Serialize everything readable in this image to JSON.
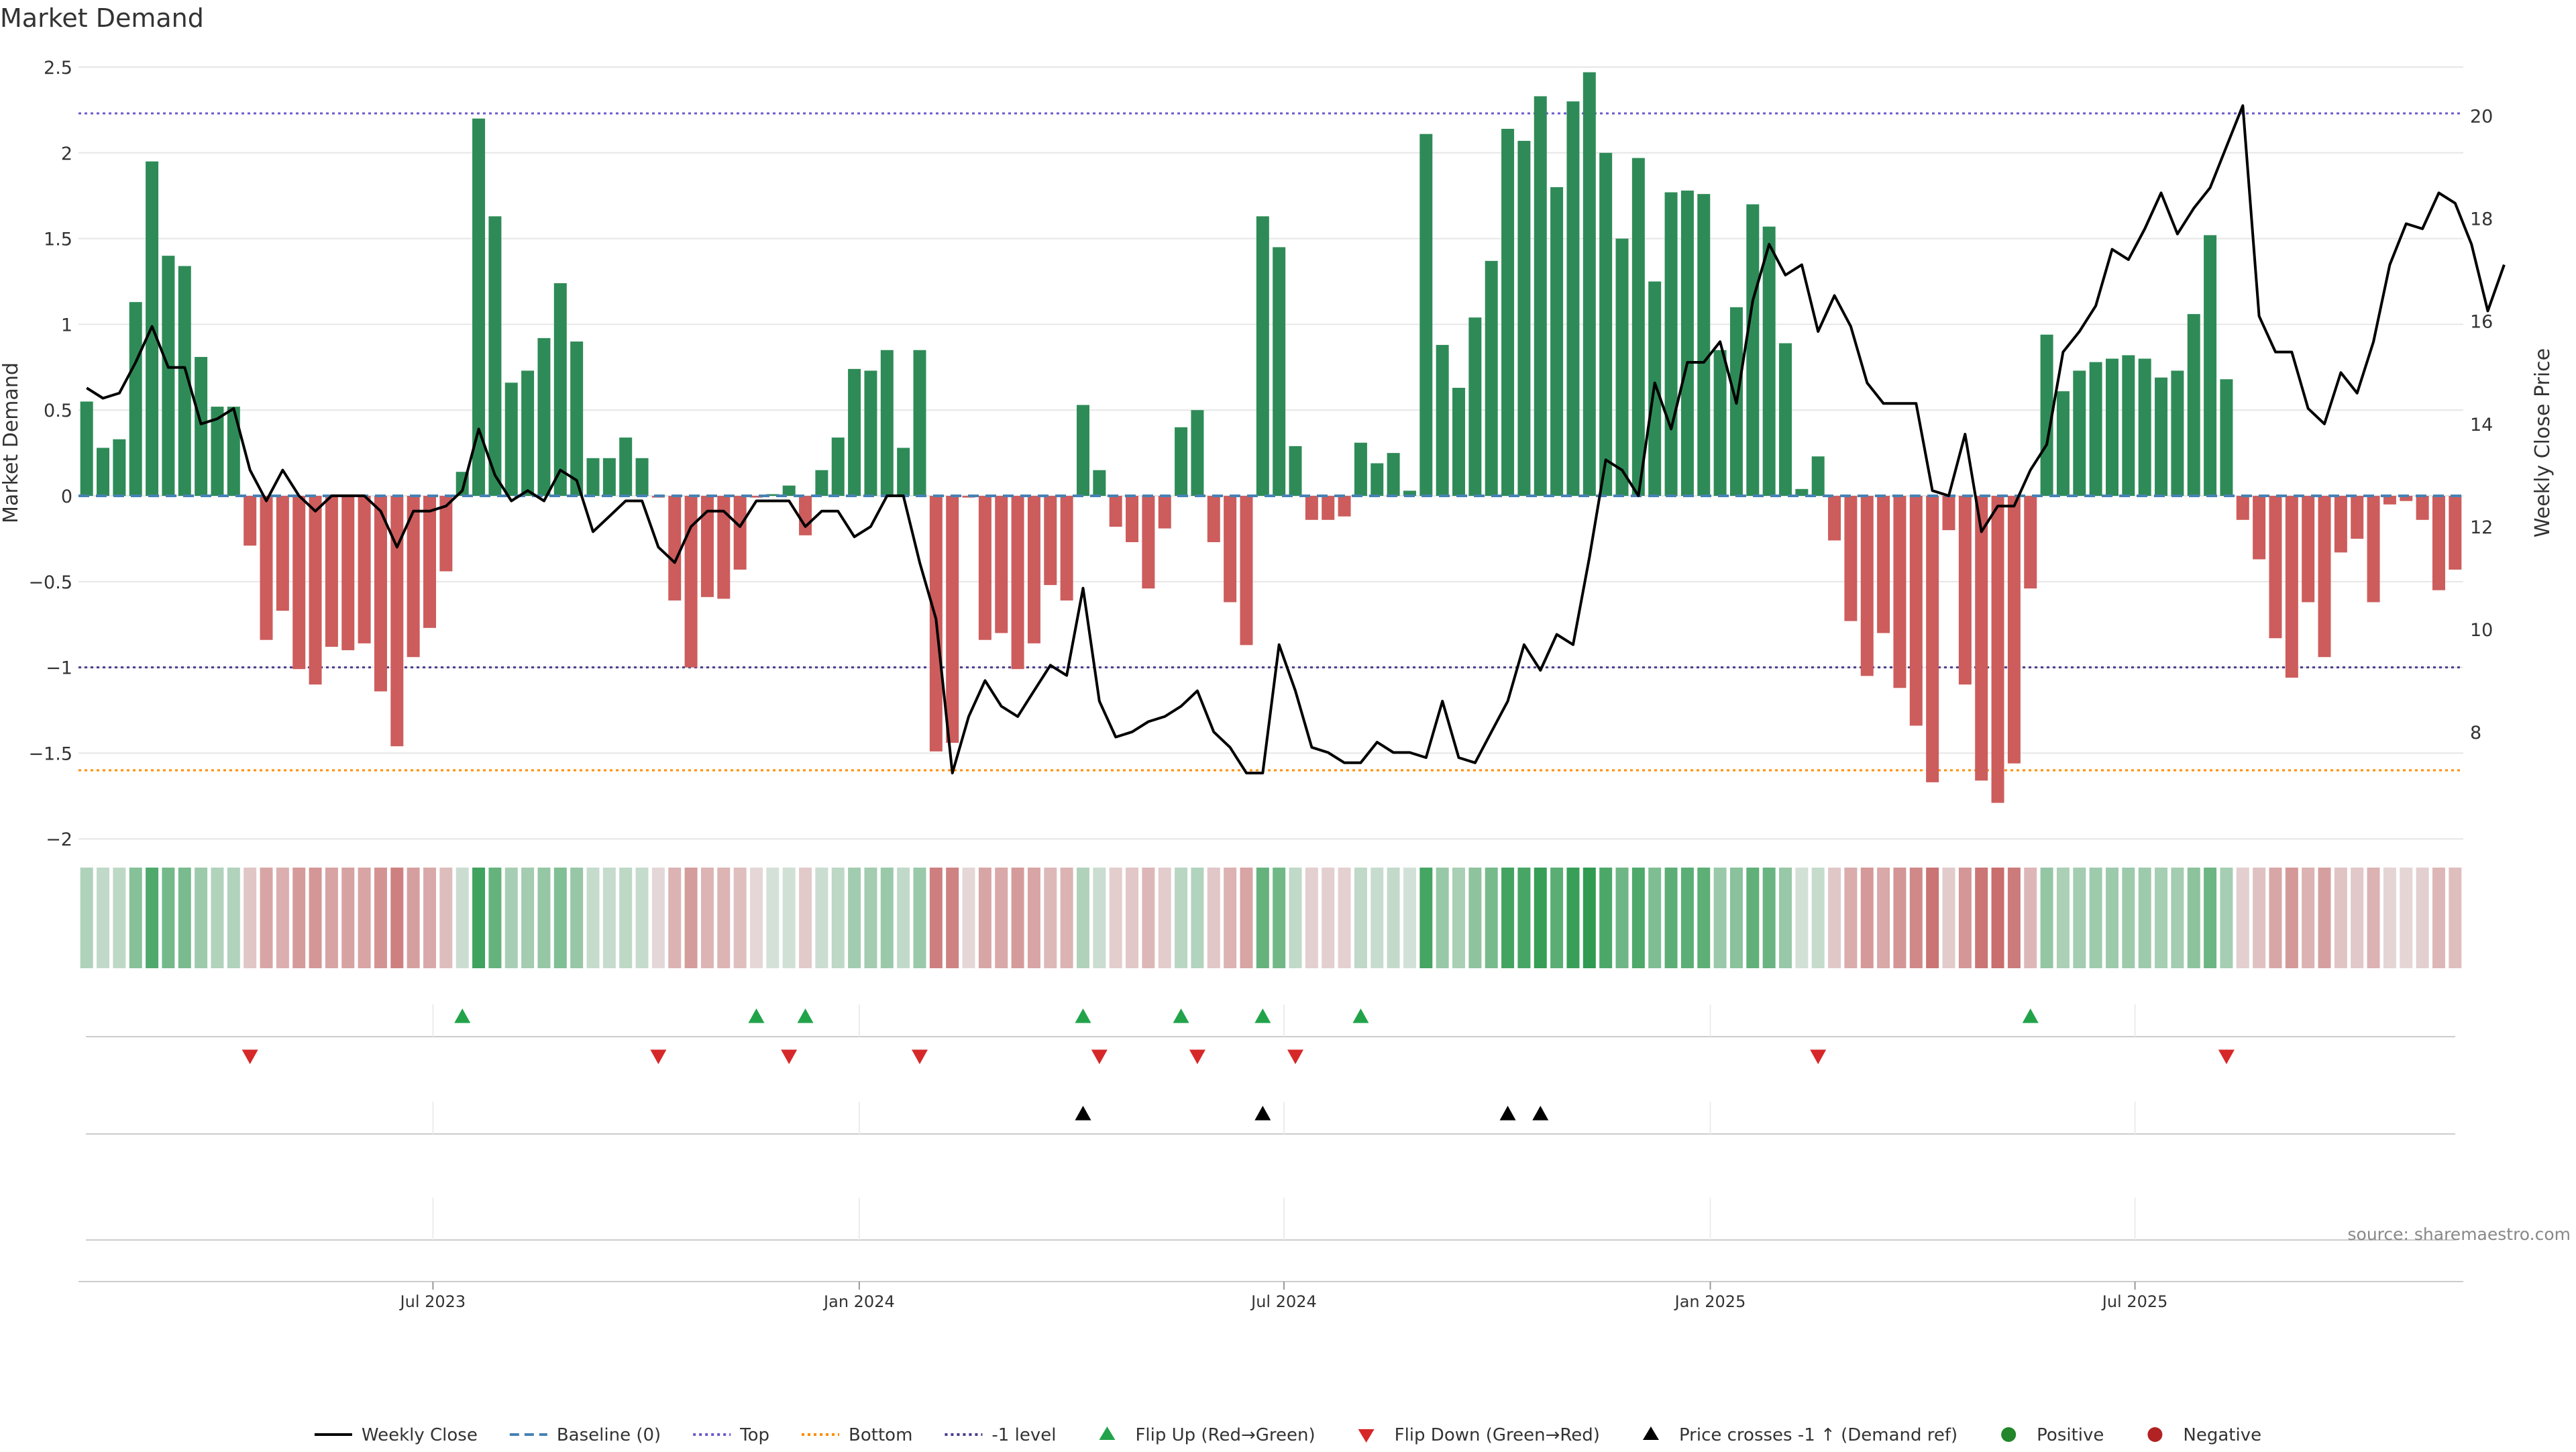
{
  "colors": {
    "positive": "#2e8b57",
    "negative": "#cd5c5c",
    "price_line": "#000000",
    "baseline": "#4682b4",
    "top": "#6a5acd",
    "bottom": "#ff8c00",
    "minus_one": "#483d8b",
    "flip_up": "#22a34a",
    "flip_down": "#d62828",
    "price_cross": "#000000",
    "grid": "#e6e6e6",
    "axis": "#cccccc",
    "source": "#888888"
  },
  "chart_data": {
    "type": "bar",
    "title": "Market Demand",
    "ylabel_left": "Market Demand",
    "ylabel_right": "Weekly Close Price",
    "ylim_left": [
      -2.05,
      2.5
    ],
    "ylim_right": [
      5.75,
      20.95
    ],
    "yticks_left": [
      2.5,
      2,
      1.5,
      1,
      0.5,
      0,
      -0.5,
      -1,
      -1.5,
      -2
    ],
    "ytick_labels_left": [
      "2.5",
      "2",
      "1.5",
      "1",
      "0.5",
      "0",
      "−0.5",
      "−1",
      "−1.5",
      "−2"
    ],
    "yticks_right": [
      20,
      18,
      16,
      14,
      12,
      10,
      8
    ],
    "ytick_labels_right": [
      "20",
      "18",
      "16",
      "14",
      "12",
      "10",
      "8"
    ],
    "xtick_positions": [
      21.2,
      47.3,
      73.3,
      99.4,
      125.4
    ],
    "xtick_labels": [
      "Jul 2023",
      "Jan 2024",
      "Jul 2024",
      "Jan 2025",
      "Jul 2025"
    ],
    "reference_lines": {
      "top": 2.23,
      "bottom": -1.6,
      "minus_one": -1.0,
      "baseline": 0
    },
    "demand": [
      0.55,
      0.28,
      0.33,
      1.13,
      1.95,
      1.4,
      1.34,
      0.81,
      0.52,
      0.52,
      -0.29,
      -0.84,
      -0.67,
      -1.01,
      -1.1,
      -0.88,
      -0.9,
      -0.86,
      -1.14,
      -1.46,
      -0.94,
      -0.77,
      -0.44,
      0.14,
      2.2,
      1.63,
      0.66,
      0.73,
      0.92,
      1.24,
      0.9,
      0.22,
      0.22,
      0.34,
      0.22,
      -0.01,
      -0.61,
      -1.0,
      -0.59,
      -0.6,
      -0.43,
      -0.01,
      0.01,
      0.06,
      -0.23,
      0.15,
      0.34,
      0.74,
      0.73,
      0.85,
      0.28,
      0.85,
      -1.49,
      -1.44,
      -0.01,
      -0.84,
      -0.8,
      -1.01,
      -0.86,
      -0.52,
      -0.61,
      0.53,
      0.15,
      -0.18,
      -0.27,
      -0.54,
      -0.19,
      0.4,
      0.5,
      -0.27,
      -0.62,
      -0.87,
      1.63,
      1.45,
      0.29,
      -0.14,
      -0.14,
      -0.12,
      0.31,
      0.19,
      0.25,
      0.03,
      2.11,
      0.88,
      0.63,
      1.04,
      1.37,
      2.14,
      2.07,
      2.33,
      1.8,
      2.3,
      2.47,
      2.0,
      1.5,
      1.97,
      1.25,
      1.77,
      1.78,
      1.76,
      0.85,
      1.1,
      1.7,
      1.57,
      0.89,
      0.04,
      0.23,
      -0.26,
      -0.73,
      -1.05,
      -0.8,
      -1.12,
      -1.34,
      -1.67,
      -0.2,
      -1.1,
      -1.66,
      -1.79,
      -1.56,
      -0.54,
      0.94,
      0.61,
      0.73,
      0.78,
      0.8,
      0.82,
      0.8,
      0.69,
      0.73,
      1.06,
      1.52,
      0.68,
      -0.14,
      -0.37,
      -0.83,
      -1.06,
      -0.62,
      -0.94,
      -0.33,
      -0.25,
      -0.62,
      -0.05,
      -0.03,
      -0.14,
      -0.55,
      -0.43
    ],
    "weekly_close": [
      14.7,
      14.5,
      14.6,
      15.2,
      15.9,
      15.1,
      15.1,
      14.0,
      14.1,
      14.3,
      13.1,
      12.5,
      13.1,
      12.6,
      12.3,
      12.6,
      12.6,
      12.6,
      12.3,
      11.6,
      12.3,
      12.3,
      12.4,
      12.7,
      13.9,
      13.0,
      12.5,
      12.7,
      12.5,
      13.1,
      12.9,
      11.9,
      12.2,
      12.5,
      12.5,
      11.6,
      11.3,
      12.0,
      12.3,
      12.3,
      12.0,
      12.5,
      12.5,
      12.5,
      12.0,
      12.3,
      12.3,
      11.8,
      12.0,
      12.6,
      12.6,
      11.3,
      10.2,
      7.2,
      8.3,
      9.0,
      8.5,
      8.3,
      8.8,
      9.3,
      9.1,
      10.8,
      8.6,
      7.9,
      8.0,
      8.2,
      8.3,
      8.5,
      8.8,
      8.0,
      7.7,
      7.2,
      7.2,
      9.7,
      8.8,
      7.7,
      7.6,
      7.4,
      7.4,
      7.8,
      7.6,
      7.6,
      7.5,
      8.6,
      7.5,
      7.4,
      8.0,
      8.6,
      9.7,
      9.2,
      9.9,
      9.7,
      11.4,
      13.3,
      13.1,
      12.6,
      14.8,
      13.9,
      15.2,
      15.2,
      15.6,
      14.4,
      16.4,
      17.5,
      16.9,
      17.1,
      15.8,
      16.5,
      15.9,
      14.8,
      14.4,
      14.4,
      14.4,
      12.7,
      12.6,
      13.8,
      11.9,
      12.4,
      12.4,
      13.1,
      13.6,
      15.4,
      15.8,
      16.3,
      17.4,
      17.2,
      17.8,
      18.5,
      17.7,
      18.2,
      18.6,
      19.4,
      20.2,
      16.1,
      15.4,
      15.4,
      14.3,
      14.0,
      15.0,
      14.6,
      15.6,
      17.1,
      17.9,
      17.8,
      18.5,
      18.3,
      17.5,
      16.2,
      17.1
    ],
    "heat_strip": "demand intensity (green = positive, red = negative)",
    "flip_up_index": [
      23,
      41,
      44,
      61,
      67,
      72,
      78,
      119
    ],
    "flip_down_index": [
      10,
      35,
      43,
      51,
      62,
      68,
      74,
      106,
      131
    ],
    "price_cross_index": [
      61,
      72,
      87,
      89
    ],
    "legend_position": "bottom-center"
  },
  "legend": [
    {
      "label": "Weekly Close",
      "symbol": "line-solid",
      "color": "#000000"
    },
    {
      "label": "Baseline (0)",
      "symbol": "line-dashed",
      "color": "#4682b4"
    },
    {
      "label": "Top",
      "symbol": "line-dotted",
      "color": "#6a5acd"
    },
    {
      "label": "Bottom",
      "symbol": "line-dotted",
      "color": "#ff8c00"
    },
    {
      "label": "-1 level",
      "symbol": "line-dotted",
      "color": "#483d8b"
    },
    {
      "label": "Flip Up (Red→Green)",
      "symbol": "triangle-up",
      "color": "#22a34a"
    },
    {
      "label": "Flip Down (Green→Red)",
      "symbol": "triangle-down",
      "color": "#d62828"
    },
    {
      "label": "Price crosses -1 ↑ (Demand ref)",
      "symbol": "triangle-up",
      "color": "#000000"
    },
    {
      "label": "Positive",
      "symbol": "dot",
      "color": "#22862a"
    },
    {
      "label": "Negative",
      "symbol": "dot",
      "color": "#b22222"
    }
  ],
  "source": "source: sharemaestro.com"
}
